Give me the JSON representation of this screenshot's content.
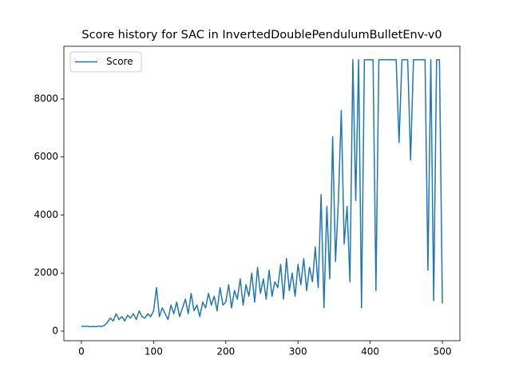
{
  "chart_data": {
    "type": "line",
    "title": "Score history for SAC in InvertedDoublePendulumBulletEnv-v0",
    "x": [
      0,
      4,
      8,
      12,
      16,
      20,
      24,
      28,
      32,
      36,
      40,
      44,
      48,
      52,
      56,
      60,
      64,
      68,
      72,
      76,
      80,
      84,
      88,
      92,
      96,
      100,
      104,
      108,
      112,
      116,
      120,
      124,
      128,
      132,
      136,
      140,
      144,
      148,
      152,
      156,
      160,
      164,
      168,
      172,
      176,
      180,
      184,
      188,
      192,
      196,
      200,
      204,
      208,
      212,
      216,
      220,
      224,
      228,
      232,
      236,
      240,
      244,
      248,
      252,
      256,
      260,
      264,
      268,
      272,
      276,
      280,
      284,
      288,
      292,
      296,
      300,
      304,
      308,
      312,
      316,
      320,
      324,
      328,
      332,
      336,
      340,
      344,
      348,
      352,
      356,
      360,
      364,
      368,
      372,
      376,
      380,
      384,
      388,
      392,
      396,
      400,
      404,
      408,
      412,
      416,
      420,
      424,
      428,
      432,
      436,
      440,
      444,
      448,
      452,
      456,
      460,
      464,
      468,
      472,
      476,
      480,
      484,
      488,
      492,
      496,
      500
    ],
    "series": [
      {
        "name": "Score",
        "color": "#1f77b4",
        "values": [
          170,
          160,
          170,
          150,
          160,
          150,
          170,
          160,
          200,
          300,
          450,
          350,
          600,
          400,
          500,
          350,
          550,
          450,
          600,
          400,
          700,
          500,
          450,
          600,
          500,
          700,
          1500,
          500,
          800,
          600,
          400,
          900,
          600,
          1000,
          500,
          800,
          1100,
          600,
          1300,
          700,
          900,
          500,
          1000,
          800,
          1300,
          900,
          1200,
          700,
          1500,
          900,
          1000,
          1600,
          800,
          1400,
          1100,
          1800,
          900,
          1600,
          1200,
          2000,
          1000,
          2200,
          1300,
          1800,
          1100,
          2100,
          1200,
          1700,
          1500,
          2300,
          1100,
          2500,
          1400,
          2000,
          1200,
          2300,
          1600,
          2500,
          1400,
          2200,
          1700,
          2900,
          1500,
          4700,
          800,
          4300,
          1800,
          6700,
          2400,
          4500,
          7600,
          3000,
          4300,
          1700,
          9350,
          4500,
          9350,
          800,
          9350,
          9350,
          9350,
          9350,
          1400,
          9350,
          9350,
          9350,
          9350,
          9350,
          9350,
          9350,
          6500,
          9350,
          9350,
          9350,
          5900,
          9350,
          9350,
          9350,
          9350,
          9350,
          2100,
          9350,
          1050,
          9350,
          9350,
          950
        ]
      }
    ],
    "xlim": [
      -24.3,
      524.3
    ],
    "ylim": [
      -330,
      9814
    ],
    "xticks": [
      0,
      100,
      200,
      300,
      400,
      500
    ],
    "yticks": [
      0,
      2000,
      4000,
      6000,
      8000
    ],
    "legend": "upper left"
  }
}
